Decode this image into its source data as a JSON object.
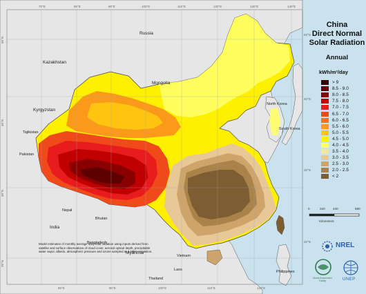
{
  "map": {
    "title_lines": [
      "China",
      "Direct Normal",
      "Solar Radiation"
    ],
    "subtitle": "Annual",
    "units_label": "kWh/m²/day",
    "legend": [
      {
        "label": "> 9",
        "color": "#3b0000"
      },
      {
        "label": "8.5 - 9.0",
        "color": "#5e0000"
      },
      {
        "label": "8.0 - 8.5",
        "color": "#8a0000"
      },
      {
        "label": "7.5 - 8.0",
        "color": "#c00000"
      },
      {
        "label": "7.0 - 7.5",
        "color": "#e81c1c"
      },
      {
        "label": "6.5 - 7.0",
        "color": "#f04a1a"
      },
      {
        "label": "6.0 - 6.5",
        "color": "#f57020"
      },
      {
        "label": "5.5 - 6.0",
        "color": "#fb9a1a"
      },
      {
        "label": "5.0 - 5.5",
        "color": "#ffc410"
      },
      {
        "label": "4.5 - 5.0",
        "color": "#fff000"
      },
      {
        "label": "4.0 - 4.5",
        "color": "#ffff66"
      },
      {
        "label": "3.5 - 4.0",
        "color": "#f2e8a2"
      },
      {
        "label": "3.0 - 3.5",
        "color": "#e9c897"
      },
      {
        "label": "2.5 - 3.0",
        "color": "#cfa46a"
      },
      {
        "label": "2.0 - 2.5",
        "color": "#a98349"
      },
      {
        "label": "< 2",
        "color": "#7e5d33"
      }
    ],
    "scale": {
      "ticks": [
        "0",
        "220",
        "440",
        "880"
      ],
      "unit": "Kilometers"
    },
    "note": "Model estimates of monthly average daily total radiation using inputs derived from satellite and surface observations of cloud cover, aerosol optical depth, precipitable water vapor, albedo, atmospheric pressure and ozone sampled at a 40km resolution.",
    "countries": [
      "Russia",
      "Kazakhstan",
      "Mongolia",
      "Kyrgyzstan",
      "Tajikistan",
      "Pakistan",
      "India",
      "Nepal",
      "Bhutan",
      "Bangladesh",
      "Myanmar",
      "Laos",
      "Vietnam",
      "Thailand",
      "Philippines",
      "North Korea",
      "South Korea"
    ],
    "lon_labels": [
      "70°E",
      "80°E",
      "90°E",
      "100°E",
      "110°E",
      "120°E",
      "130°E",
      "140°E"
    ],
    "lat_labels": [
      "50°N",
      "40°N",
      "30°N",
      "20°N"
    ],
    "logos": {
      "nrel": "NREL",
      "unep": "UNEP",
      "gef": "Global Environment Facility"
    },
    "colors": {
      "ocean": "#c9e2ee",
      "land_outside": "#e8e8e8",
      "border": "#555555",
      "grid": "#9aa6b4"
    }
  }
}
